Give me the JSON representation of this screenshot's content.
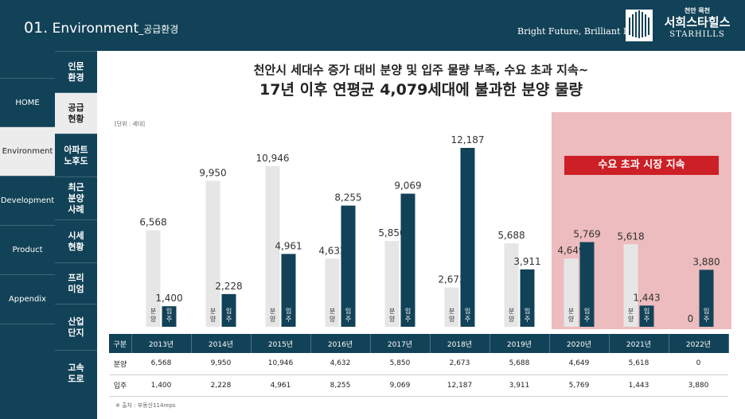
{
  "header": {
    "number": "01.",
    "title": "Environment",
    "subtitle": "_공급환경",
    "slogan": "Bright Future, Brilliant Life!",
    "logo": {
      "small": "천안 목천",
      "main": "서희스타힐스",
      "en": "STARHILLS"
    }
  },
  "nav": {
    "items": [
      {
        "label": "HOME"
      },
      {
        "label": "Environment"
      },
      {
        "label": "Development"
      },
      {
        "label": "Product"
      },
      {
        "label": "Appendix"
      }
    ]
  },
  "subnav": {
    "items": [
      {
        "label": "인문\n환경"
      },
      {
        "label": "공급\n현황"
      },
      {
        "label": "아파트\n노후도"
      },
      {
        "label": "최근\n분양\n사례"
      },
      {
        "label": "시세\n현황"
      },
      {
        "label": "프리\n미엄"
      },
      {
        "label": "산업\n단지"
      },
      {
        "label": "고속\n도로"
      }
    ]
  },
  "headline": {
    "line1": "천안시 세대수 증가 대비 분양 및 입주 물량 부족, 수요 초과 지속~",
    "line2": "17년 이후 연평균 4,079세대에 불과한 분양 물량"
  },
  "unit": "[단위 : 세대]",
  "highlight_label": "수요 초과 시장 지속",
  "chart_data": {
    "type": "bar",
    "categories": [
      "2013년",
      "2014년",
      "2015년",
      "2016년",
      "2017년",
      "2018년",
      "2019년",
      "2020년",
      "2021년",
      "2022년"
    ],
    "series": [
      {
        "name": "분양",
        "color": "#e6e6e6",
        "values": [
          6568,
          9950,
          10946,
          4632,
          5850,
          2673,
          5688,
          4649,
          5618,
          0
        ]
      },
      {
        "name": "입주",
        "color": "#124257",
        "values": [
          1400,
          2228,
          4961,
          8255,
          9069,
          12187,
          3911,
          5769,
          1443,
          3880
        ]
      }
    ],
    "ylim": [
      0,
      12187
    ],
    "highlight_categories": [
      "2020년",
      "2021년",
      "2022년"
    ],
    "series_labels": {
      "supply": "분양",
      "move_in": "입주"
    }
  },
  "table": {
    "header_label": "구분",
    "rows": [
      {
        "label": "분양",
        "cells": [
          "6,568",
          "9,950",
          "10,946",
          "4,632",
          "5,850",
          "2,673",
          "5,688",
          "4,649",
          "5,618",
          "0"
        ]
      },
      {
        "label": "입주",
        "cells": [
          "1,400",
          "2,228",
          "4,961",
          "8,255",
          "9,069",
          "12,187",
          "3,911",
          "5,769",
          "1,443",
          "3,880"
        ]
      }
    ]
  },
  "source": "※ 출처 : 부동산114reps",
  "colors": {
    "navy": "#124257",
    "highlight": "#edbcbe",
    "red": "#cc1f26",
    "supply_bar": "#e6e6e6"
  }
}
